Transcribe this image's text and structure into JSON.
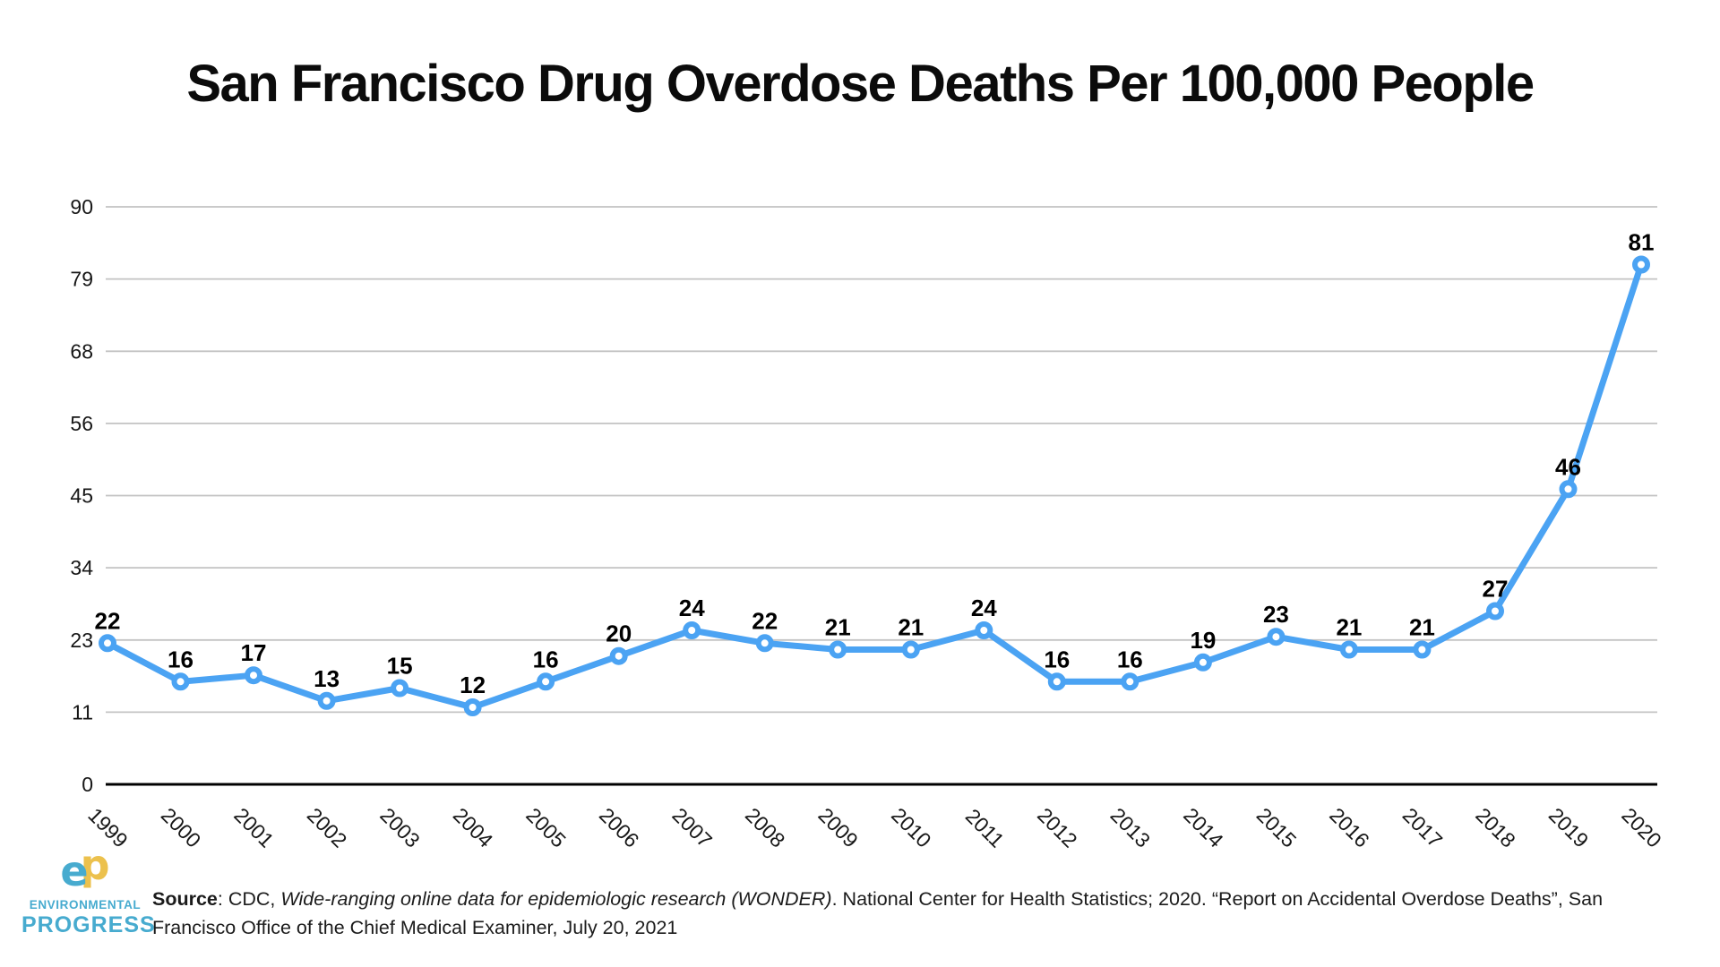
{
  "title": "San Francisco Drug Overdose Deaths Per 100,000 People",
  "chart_data": {
    "type": "line",
    "title": "San Francisco Drug Overdose Deaths Per 100,000 People",
    "x": [
      "1999",
      "2000",
      "2001",
      "2002",
      "2003",
      "2004",
      "2005",
      "2006",
      "2007",
      "2008",
      "2009",
      "2010",
      "2011",
      "2012",
      "2013",
      "2014",
      "2015",
      "2016",
      "2017",
      "2018",
      "2019",
      "2020"
    ],
    "values": [
      22,
      16,
      17,
      13,
      15,
      12,
      16,
      20,
      24,
      22,
      21,
      21,
      24,
      16,
      16,
      19,
      23,
      21,
      21,
      27,
      46,
      81
    ],
    "xlabel": "",
    "ylabel": "",
    "ylim": [
      0,
      90
    ],
    "yticks": [
      {
        "value": 0,
        "label": "0"
      },
      {
        "value": 11.25,
        "label": "11"
      },
      {
        "value": 22.5,
        "label": "23"
      },
      {
        "value": 33.75,
        "label": "34"
      },
      {
        "value": 45,
        "label": "45"
      },
      {
        "value": 56.25,
        "label": "56"
      },
      {
        "value": 67.5,
        "label": "68"
      },
      {
        "value": 78.75,
        "label": "79"
      },
      {
        "value": 90,
        "label": "90"
      }
    ],
    "grid": "horizontal",
    "legend": "none",
    "marker": "open-circle",
    "data_labels": true,
    "line_color": "#4ba3f3",
    "grid_color": "#c3c3c3",
    "axis_color": "#000000",
    "label_color": "#000000"
  },
  "footer": {
    "logo": {
      "monogram_e": "e",
      "monogram_p": "p",
      "line1": "ENVIRONMENTAL",
      "line2": "PROGRESS",
      "blue": "#47abcf",
      "yellow": "#ecc14d"
    },
    "source": {
      "parts": [
        {
          "text": "Source"
        },
        {
          "text": ": CDC, "
        },
        {
          "text": "Wide-ranging online data for epidemiologic research (WONDER)"
        },
        {
          "text": ". National Center for Health Statistics; 2020. “Report on Accidental Overdose Deaths”, San Francisco Office of the Chief Medical Examiner, July 20, 2021"
        }
      ]
    }
  }
}
